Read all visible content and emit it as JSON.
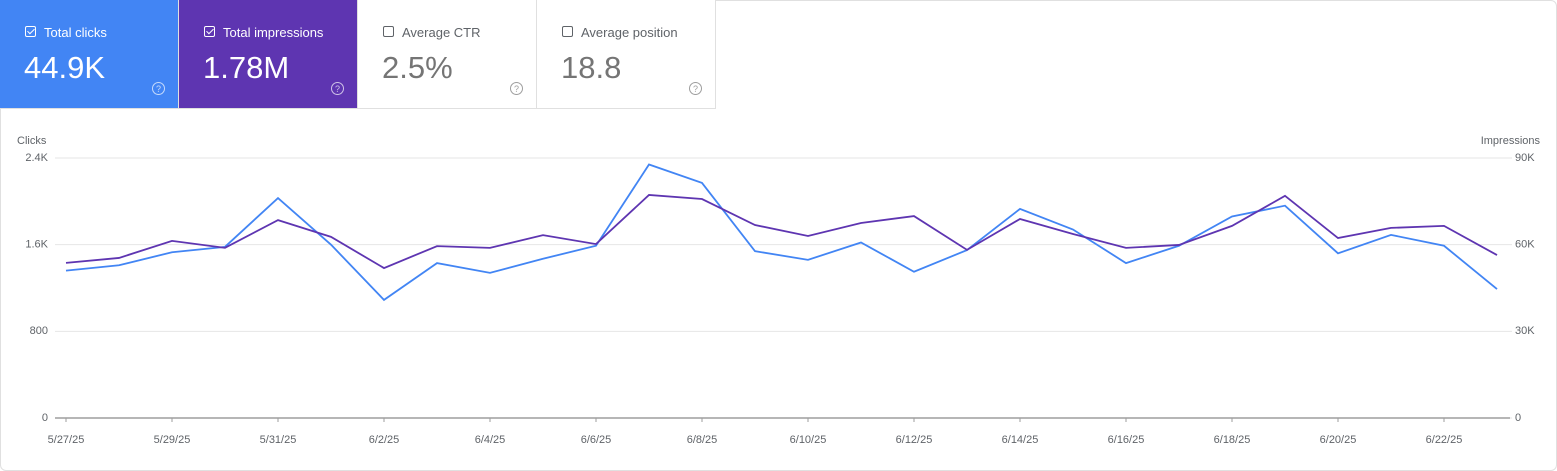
{
  "cards": [
    {
      "label": "Total clicks",
      "value": "44.9K",
      "checked": true,
      "color": "#4285f4"
    },
    {
      "label": "Total impressions",
      "value": "1.78M",
      "checked": true,
      "color": "#5e35b1"
    },
    {
      "label": "Average CTR",
      "value": "2.5%",
      "checked": false,
      "color": "#ffffff"
    },
    {
      "label": "Average position",
      "value": "18.8",
      "checked": false,
      "color": "#ffffff"
    }
  ],
  "chart_data": {
    "type": "line",
    "y_label": "Clicks",
    "y2_label": "Impressions",
    "categories": [
      "5/27/25",
      null,
      "5/29/25",
      null,
      "5/31/25",
      null,
      "6/2/25",
      null,
      "6/4/25",
      null,
      "6/6/25",
      null,
      "6/8/25",
      null,
      "6/10/25",
      null,
      "6/12/25",
      null,
      "6/14/25",
      null,
      "6/16/25",
      null,
      "6/18/25",
      null,
      "6/20/25",
      null,
      "6/22/25",
      null
    ],
    "series": [
      {
        "color": "#4285f4",
        "axis": "y",
        "values": [
          1360,
          1410,
          1530,
          1580,
          2030,
          1600,
          1090,
          1430,
          1340,
          1470,
          1590,
          2340,
          2170,
          1540,
          1460,
          1620,
          1350,
          1550,
          1930,
          1740,
          1430,
          1590,
          1860,
          1960,
          1520,
          1690,
          1590,
          1190
        ]
      },
      {
        "color": "#5e35b1",
        "axis": "y2",
        "values": [
          53700,
          55400,
          61300,
          58900,
          68500,
          62700,
          51900,
          59500,
          58900,
          63300,
          60200,
          77200,
          75800,
          66800,
          63000,
          67500,
          69900,
          58200,
          68900,
          63700,
          58900,
          59900,
          66500,
          76900,
          62300,
          65800,
          66500,
          56400
        ]
      }
    ],
    "ylim": [
      0,
      2400
    ],
    "yticks": [
      0,
      {
        "value": 800,
        "label": "800"
      },
      {
        "value": 1600,
        "label": "1.6K"
      },
      {
        "value": 2400,
        "label": "2.4K"
      }
    ],
    "y2lim": [
      0,
      90000
    ],
    "y2ticks": [
      0,
      {
        "value": 30000,
        "label": "30K"
      },
      {
        "value": 60000,
        "label": "60K"
      },
      {
        "value": 90000,
        "label": "90K"
      }
    ],
    "grid": true
  }
}
